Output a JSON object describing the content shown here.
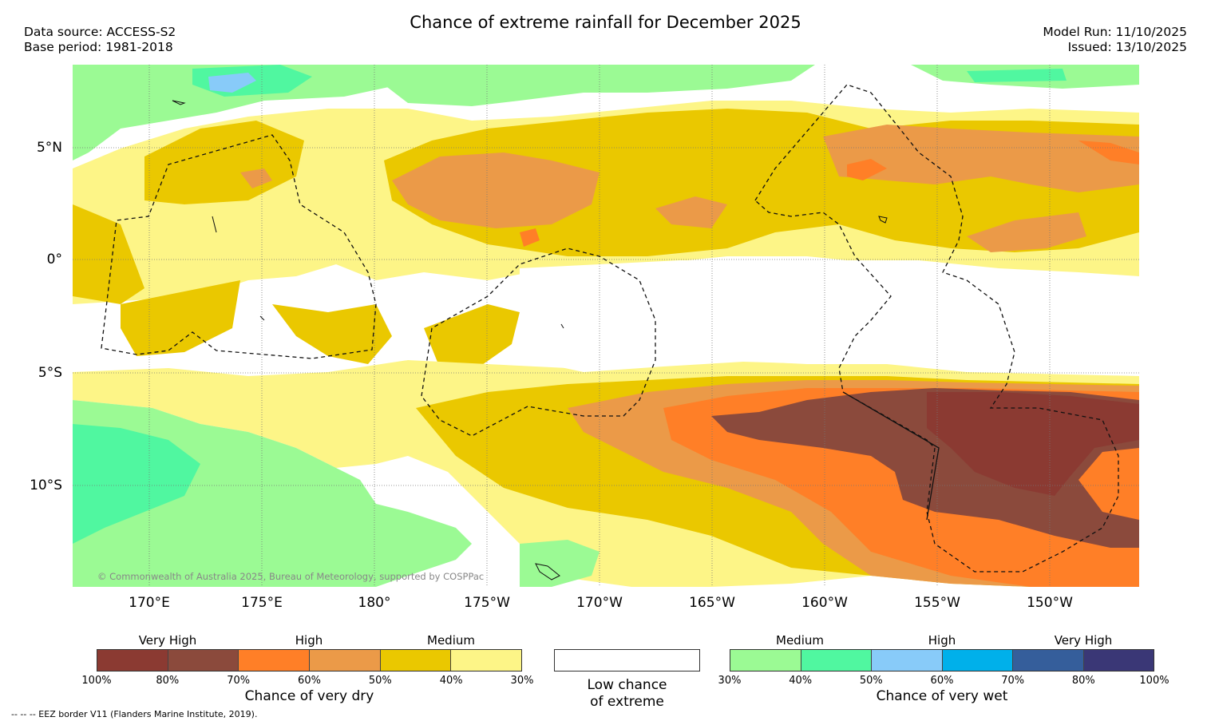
{
  "title": "Chance of extreme rainfall for December 2025",
  "header_left": {
    "data_source": "Data source: ACCESS-S2",
    "base_period": "Base period: 1981-2018"
  },
  "header_right": {
    "model_run": "Model Run: 11/10/2025",
    "issued": "Issued: 13/10/2025"
  },
  "axes": {
    "longitude_labels": [
      "170°E",
      "175°E",
      "180°",
      "175°W",
      "170°W",
      "165°W",
      "160°W",
      "155°W",
      "150°W"
    ],
    "latitude_labels": [
      "5°N",
      "0°",
      "5°S",
      "10°S"
    ]
  },
  "copyright": "© Commonwealth of Australia 2025, Bureau of Meteorology, supported by COSPPac",
  "legend": {
    "dry": {
      "levels": [
        "Very High",
        "High",
        "Medium"
      ],
      "ticks": [
        "100%",
        "80%",
        "70%",
        "60%",
        "50%",
        "40%",
        "30%"
      ],
      "caption": "Chance of very dry",
      "colors": [
        "#8b3a32",
        "#8b4a3c",
        "#ff7f27",
        "#eb9a48",
        "#eac800",
        "#fdf587"
      ]
    },
    "neutral": {
      "caption_line1": "Low chance",
      "caption_line2": "of extreme",
      "color": "#ffffff"
    },
    "wet": {
      "levels": [
        "Medium",
        "High",
        "Very High"
      ],
      "ticks": [
        "30%",
        "40%",
        "50%",
        "60%",
        "70%",
        "80%",
        "100%"
      ],
      "caption": "Chance of very wet",
      "colors": [
        "#9bfa94",
        "#50f7a0",
        "#88cbf9",
        "#00b0ea",
        "#355e9b",
        "#3a3776"
      ]
    }
  },
  "footnote": "-- -- -- EEZ border V11 (Flanders Marine Institute, 2019)."
}
